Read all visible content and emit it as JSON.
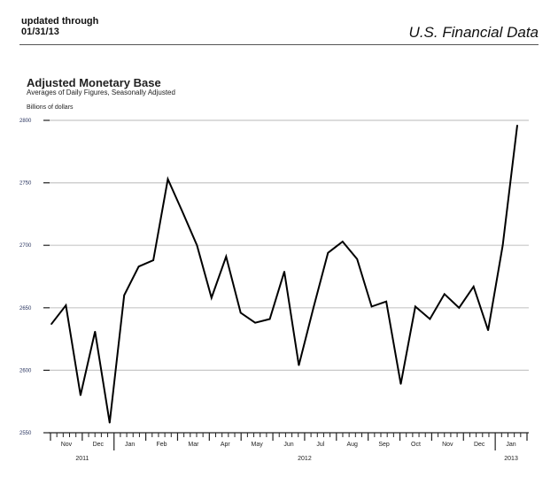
{
  "header": {
    "updated_line1": "updated through",
    "updated_line2": "01/31/13",
    "brand": "U.S. Financial Data"
  },
  "chart_data": {
    "type": "line",
    "title": "Adjusted Monetary Base",
    "subtitle": "Averages of Daily Figures, Seasonally Adjusted",
    "ylabel": "Billions of dollars",
    "xlabel": "",
    "ylim": [
      2550,
      2800
    ],
    "yticks": [
      2550,
      2600,
      2650,
      2700,
      2750,
      2800
    ],
    "grid": true,
    "months": [
      "Nov",
      "Dec",
      "Jan",
      "Feb",
      "Mar",
      "Apr",
      "May",
      "Jun",
      "Jul",
      "Aug",
      "Sep",
      "Oct",
      "Nov",
      "Dec",
      "Jan"
    ],
    "years": [
      {
        "label": "2011",
        "months": 2
      },
      {
        "label": "2012",
        "months": 12
      },
      {
        "label": "2013",
        "months": 1
      }
    ],
    "series": [
      {
        "name": "Adjusted Monetary Base",
        "color": "#000000",
        "values": [
          2637,
          2652,
          2580,
          2631,
          2558,
          2660,
          2683,
          2688,
          2753,
          2727,
          2700,
          2658,
          2691,
          2646,
          2638,
          2641,
          2679,
          2604,
          2650,
          2694,
          2703,
          2689,
          2651,
          2655,
          2589,
          2651,
          2641,
          2661,
          2650,
          2667,
          2632,
          2700,
          2796
        ]
      }
    ]
  }
}
